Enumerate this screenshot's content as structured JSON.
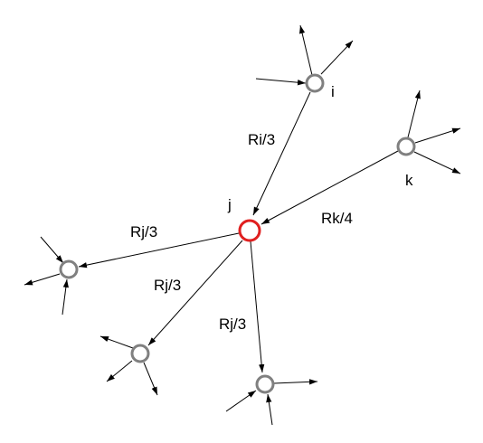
{
  "colors": {
    "background": "#ffffff",
    "edge": "#000000",
    "node_outline": "#808080",
    "center_node_outline": "#e02020"
  },
  "nodes": {
    "i": {
      "label": "i"
    },
    "j": {
      "label": "j"
    },
    "k": {
      "label": "k"
    }
  },
  "edge_labels": {
    "i_to_j": "Ri/3",
    "k_to_j": "Rk/4",
    "j_to_left": "Rj/3",
    "j_to_bottom_left": "Rj/3",
    "j_to_bottom": "Rj/3"
  }
}
